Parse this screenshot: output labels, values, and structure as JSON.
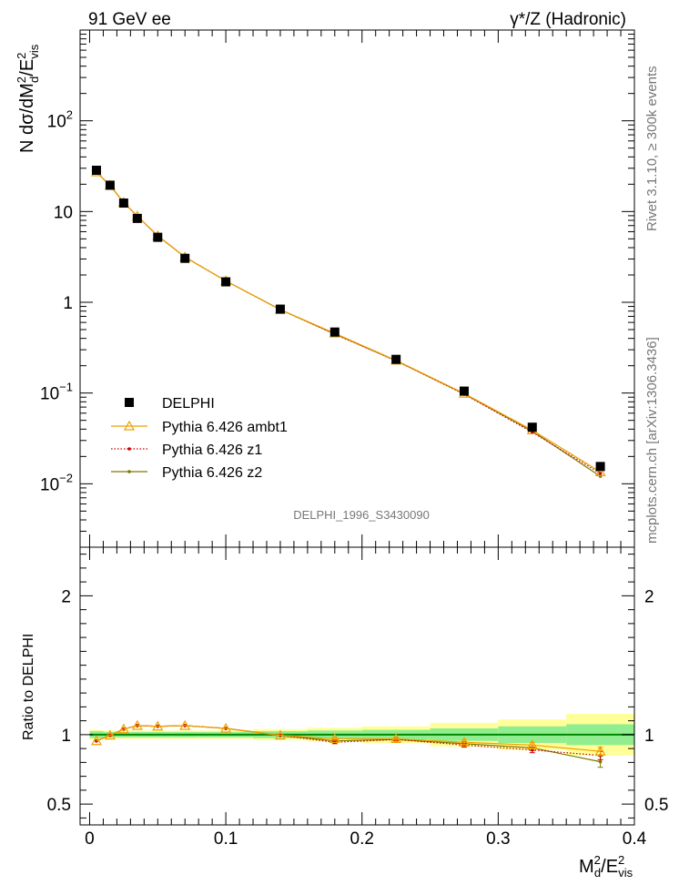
{
  "header": {
    "left": "91 GeV ee",
    "right": "γ*/Z (Hadronic)"
  },
  "side_labels": {
    "top": "Rivet 3.1.10, ≥ 300k events",
    "bottom": "mcplots.cern.ch [arXiv:1306.3436]"
  },
  "watermark": "DELPHI_1996_S3430090",
  "colors": {
    "delphi": "#000000",
    "ambt1": "#f0a000",
    "z1": "#cc0000",
    "z2": "#7a7a00",
    "band_inner": "#90ee90",
    "band_outer": "#ffff99"
  },
  "chart_data": [
    {
      "type": "scatter",
      "name": "main",
      "ylabel": "N dσ/dM²_d/E²_vis",
      "yscale": "log",
      "ylim": [
        0.002,
        1000
      ],
      "xlim": [
        -0.007,
        0.4
      ],
      "y_tick_labels": [
        "10⁻²",
        "10⁻¹",
        "1",
        "10",
        "10²"
      ],
      "legend_position": "lower-left",
      "x": [
        0.005,
        0.015,
        0.025,
        0.035,
        0.05,
        0.07,
        0.1,
        0.14,
        0.18,
        0.225,
        0.275,
        0.325,
        0.375
      ],
      "x_halfwidth": [
        0.005,
        0.005,
        0.005,
        0.005,
        0.01,
        0.01,
        0.02,
        0.02,
        0.02,
        0.025,
        0.025,
        0.025,
        0.025
      ],
      "series": [
        {
          "name": "DELPHI",
          "values": [
            28.5,
            19.5,
            12.4,
            8.4,
            5.2,
            3.05,
            1.68,
            0.84,
            0.47,
            0.235,
            0.105,
            0.042,
            0.0155
          ]
        },
        {
          "name": "Pythia 6.426 ambt1",
          "values": [
            27.2,
            19.4,
            12.6,
            8.9,
            5.4,
            3.15,
            1.72,
            0.83,
            0.455,
            0.229,
            0.099,
            0.039,
            0.0135
          ]
        },
        {
          "name": "Pythia 6.426 z1",
          "values": [
            27.2,
            19.4,
            12.6,
            8.9,
            5.4,
            3.15,
            1.72,
            0.83,
            0.445,
            0.227,
            0.097,
            0.037,
            0.013
          ]
        },
        {
          "name": "Pythia 6.426 z2",
          "values": [
            27.2,
            19.4,
            12.6,
            8.9,
            5.4,
            3.15,
            1.72,
            0.83,
            0.448,
            0.227,
            0.098,
            0.038,
            0.0121
          ]
        }
      ]
    },
    {
      "type": "scatter",
      "name": "ratio",
      "xlabel": "M²_d/E²_vis",
      "ylabel": "Ratio to DELPHI",
      "ylim": [
        0.35,
        2.35
      ],
      "xlim": [
        -0.007,
        0.4
      ],
      "x_ticks": [
        0,
        0.1,
        0.2,
        0.3,
        0.4
      ],
      "x_tick_labels": [
        "0",
        "0.1",
        "0.2",
        "0.3",
        "0.4"
      ],
      "y_ticks": [
        0.5,
        1,
        2
      ],
      "y_tick_labels": [
        "0.5",
        "1",
        "2"
      ],
      "band_x_edges": [
        0,
        0.01,
        0.02,
        0.03,
        0.04,
        0.06,
        0.08,
        0.12,
        0.16,
        0.2,
        0.25,
        0.3,
        0.35,
        0.4
      ],
      "band_inner_halfwidth": [
        0.025,
        0.02,
        0.02,
        0.02,
        0.02,
        0.02,
        0.02,
        0.025,
        0.03,
        0.035,
        0.045,
        0.06,
        0.075
      ],
      "band_outer_halfwidth": [
        0.035,
        0.03,
        0.03,
        0.03,
        0.03,
        0.03,
        0.03,
        0.04,
        0.05,
        0.06,
        0.085,
        0.11,
        0.15
      ],
      "series": [
        {
          "name": "Pythia 6.426 ambt1",
          "values": [
            0.955,
            0.995,
            1.04,
            1.065,
            1.06,
            1.065,
            1.045,
            0.995,
            0.97,
            0.97,
            0.945,
            0.925,
            0.88
          ],
          "errors": [
            0,
            0,
            0,
            0,
            0,
            0,
            0,
            0,
            0.01,
            0.01,
            0.015,
            0.02,
            0.03
          ]
        },
        {
          "name": "Pythia 6.426 z1",
          "values": [
            0.955,
            0.995,
            1.04,
            1.065,
            1.06,
            1.065,
            1.045,
            0.995,
            0.945,
            0.965,
            0.925,
            0.89,
            0.85
          ],
          "errors": [
            0,
            0,
            0,
            0,
            0,
            0,
            0,
            0,
            0.01,
            0.01,
            0.015,
            0.02,
            0.03
          ]
        },
        {
          "name": "Pythia 6.426 z2",
          "values": [
            0.955,
            0.995,
            1.04,
            1.065,
            1.06,
            1.065,
            1.045,
            0.995,
            0.955,
            0.965,
            0.935,
            0.905,
            0.805
          ],
          "errors": [
            0,
            0,
            0,
            0,
            0,
            0,
            0,
            0,
            0.01,
            0.01,
            0.015,
            0.02,
            0.04
          ]
        }
      ]
    }
  ]
}
